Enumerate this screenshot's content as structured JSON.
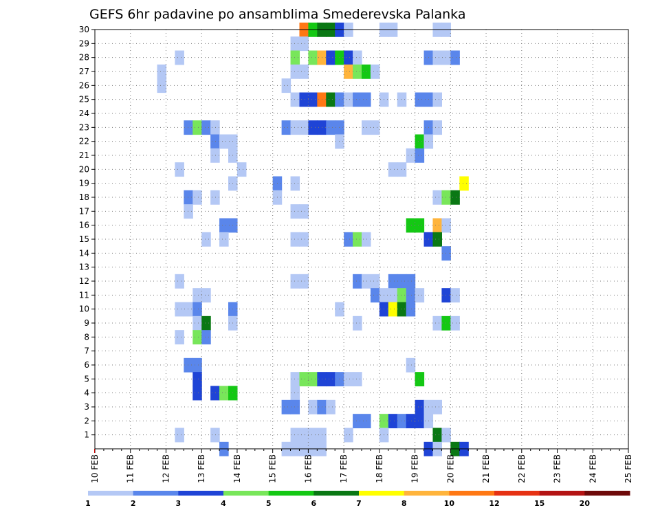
{
  "chart_data": {
    "type": "heatmap",
    "title": "GEFS 6hr padavine po ansamblima Smederevska Palanka",
    "xlabel": "",
    "ylabel": "",
    "x_tick_labels": [
      "10 FEB",
      "11 FEB",
      "12 FEB",
      "13 FEB",
      "14 FEB",
      "15 FEB",
      "16 FEB",
      "17 FEB",
      "18 FEB",
      "19 FEB",
      "20 FEB",
      "21 FEB",
      "22 FEB",
      "23 FEB",
      "24 FEB",
      "25 FEB"
    ],
    "x_range_days": [
      0,
      15
    ],
    "x_step_hours": 6,
    "y_tick_labels": [
      "1",
      "2",
      "3",
      "4",
      "5",
      "6",
      "7",
      "8",
      "9",
      "10",
      "11",
      "12",
      "13",
      "14",
      "15",
      "16",
      "17",
      "18",
      "19",
      "20",
      "21",
      "22",
      "23",
      "24",
      "25",
      "26",
      "27",
      "28",
      "29",
      "30"
    ],
    "y_range": [
      0,
      30
    ],
    "grid": true,
    "colorbar": {
      "position": "bottom",
      "tick_labels": [
        "1",
        "2",
        "3",
        "4",
        "5",
        "6",
        "7",
        "8",
        "10",
        "12",
        "15",
        "20"
      ],
      "colors": [
        "#b4c8f5",
        "#5a86eb",
        "#1f44d6",
        "#78e65a",
        "#14c814",
        "#0a7814",
        "#ffff00",
        "#ffb43c",
        "#ff7814",
        "#e63214",
        "#b41414",
        "#6e0a0a"
      ]
    },
    "note": "cells: [x_step_index (6h steps from 10 FEB 00Z), ensemble member, color class 0-11]",
    "cells": [
      [
        23,
        30,
        8
      ],
      [
        24,
        30,
        4
      ],
      [
        25,
        30,
        5
      ],
      [
        26,
        30,
        5
      ],
      [
        27,
        30,
        2
      ],
      [
        28,
        30,
        0
      ],
      [
        32,
        30,
        0
      ],
      [
        33,
        30,
        0
      ],
      [
        38,
        30,
        0
      ],
      [
        39,
        30,
        0
      ],
      [
        22,
        29,
        0
      ],
      [
        23,
        29,
        0
      ],
      [
        9,
        28,
        0
      ],
      [
        22,
        28,
        3
      ],
      [
        24,
        28,
        3
      ],
      [
        25,
        28,
        7
      ],
      [
        26,
        28,
        2
      ],
      [
        27,
        28,
        4
      ],
      [
        28,
        28,
        2
      ],
      [
        29,
        28,
        0
      ],
      [
        37,
        28,
        1
      ],
      [
        38,
        28,
        0
      ],
      [
        39,
        28,
        0
      ],
      [
        40,
        28,
        1
      ],
      [
        7,
        27,
        0
      ],
      [
        22,
        27,
        0
      ],
      [
        23,
        27,
        0
      ],
      [
        28,
        27,
        7
      ],
      [
        29,
        27,
        3
      ],
      [
        30,
        27,
        4
      ],
      [
        31,
        27,
        0
      ],
      [
        7,
        26,
        0
      ],
      [
        21,
        26,
        0
      ],
      [
        22,
        25,
        0
      ],
      [
        23,
        25,
        2
      ],
      [
        24,
        25,
        2
      ],
      [
        25,
        25,
        8
      ],
      [
        26,
        25,
        5
      ],
      [
        27,
        25,
        1
      ],
      [
        28,
        25,
        0
      ],
      [
        29,
        25,
        1
      ],
      [
        30,
        25,
        1
      ],
      [
        32,
        25,
        0
      ],
      [
        34,
        25,
        0
      ],
      [
        36,
        25,
        1
      ],
      [
        37,
        25,
        1
      ],
      [
        38,
        25,
        0
      ],
      [
        10,
        23,
        1
      ],
      [
        11,
        23,
        3
      ],
      [
        12,
        23,
        1
      ],
      [
        13,
        23,
        0
      ],
      [
        21,
        23,
        1
      ],
      [
        22,
        23,
        0
      ],
      [
        23,
        23,
        0
      ],
      [
        24,
        23,
        2
      ],
      [
        25,
        23,
        2
      ],
      [
        26,
        23,
        1
      ],
      [
        27,
        23,
        1
      ],
      [
        30,
        23,
        0
      ],
      [
        31,
        23,
        0
      ],
      [
        37,
        23,
        1
      ],
      [
        38,
        23,
        0
      ],
      [
        13,
        22,
        1
      ],
      [
        14,
        22,
        0
      ],
      [
        15,
        22,
        0
      ],
      [
        27,
        22,
        0
      ],
      [
        36,
        22,
        4
      ],
      [
        37,
        22,
        0
      ],
      [
        13,
        21,
        0
      ],
      [
        15,
        21,
        0
      ],
      [
        35,
        21,
        0
      ],
      [
        36,
        21,
        1
      ],
      [
        9,
        20,
        0
      ],
      [
        16,
        20,
        0
      ],
      [
        33,
        20,
        0
      ],
      [
        34,
        20,
        0
      ],
      [
        15,
        19,
        0
      ],
      [
        20,
        19,
        1
      ],
      [
        22,
        19,
        0
      ],
      [
        41,
        19,
        6
      ],
      [
        10,
        18,
        1
      ],
      [
        11,
        18,
        0
      ],
      [
        13,
        18,
        0
      ],
      [
        20,
        18,
        0
      ],
      [
        38,
        18,
        0
      ],
      [
        39,
        18,
        3
      ],
      [
        40,
        18,
        5
      ],
      [
        10,
        17,
        0
      ],
      [
        22,
        17,
        0
      ],
      [
        23,
        17,
        0
      ],
      [
        14,
        16,
        1
      ],
      [
        15,
        16,
        1
      ],
      [
        35,
        16,
        4
      ],
      [
        36,
        16,
        4
      ],
      [
        38,
        16,
        7
      ],
      [
        39,
        16,
        0
      ],
      [
        12,
        15,
        0
      ],
      [
        14,
        15,
        0
      ],
      [
        22,
        15,
        0
      ],
      [
        23,
        15,
        0
      ],
      [
        28,
        15,
        1
      ],
      [
        29,
        15,
        3
      ],
      [
        30,
        15,
        0
      ],
      [
        37,
        15,
        2
      ],
      [
        38,
        15,
        5
      ],
      [
        39,
        14,
        1
      ],
      [
        9,
        12,
        0
      ],
      [
        22,
        12,
        0
      ],
      [
        23,
        12,
        0
      ],
      [
        29,
        12,
        1
      ],
      [
        30,
        12,
        0
      ],
      [
        31,
        12,
        0
      ],
      [
        33,
        12,
        1
      ],
      [
        34,
        12,
        1
      ],
      [
        35,
        12,
        1
      ],
      [
        11,
        11,
        0
      ],
      [
        12,
        11,
        0
      ],
      [
        31,
        11,
        1
      ],
      [
        32,
        11,
        0
      ],
      [
        33,
        11,
        0
      ],
      [
        34,
        11,
        3
      ],
      [
        35,
        11,
        1
      ],
      [
        36,
        11,
        0
      ],
      [
        39,
        11,
        2
      ],
      [
        40,
        11,
        0
      ],
      [
        9,
        10,
        0
      ],
      [
        10,
        10,
        0
      ],
      [
        11,
        10,
        1
      ],
      [
        15,
        10,
        1
      ],
      [
        27,
        10,
        0
      ],
      [
        32,
        10,
        2
      ],
      [
        33,
        10,
        6
      ],
      [
        34,
        10,
        5
      ],
      [
        35,
        10,
        1
      ],
      [
        11,
        9,
        0
      ],
      [
        12,
        9,
        5
      ],
      [
        15,
        9,
        0
      ],
      [
        29,
        9,
        0
      ],
      [
        38,
        9,
        0
      ],
      [
        39,
        9,
        4
      ],
      [
        40,
        9,
        0
      ],
      [
        9,
        8,
        0
      ],
      [
        11,
        8,
        3
      ],
      [
        12,
        8,
        1
      ],
      [
        10,
        6,
        1
      ],
      [
        11,
        6,
        1
      ],
      [
        35,
        6,
        0
      ],
      [
        11,
        5,
        2
      ],
      [
        22,
        5,
        0
      ],
      [
        23,
        5,
        3
      ],
      [
        24,
        5,
        3
      ],
      [
        25,
        5,
        2
      ],
      [
        26,
        5,
        2
      ],
      [
        27,
        5,
        1
      ],
      [
        28,
        5,
        0
      ],
      [
        29,
        5,
        0
      ],
      [
        36,
        5,
        4
      ],
      [
        11,
        4,
        2
      ],
      [
        13,
        4,
        2
      ],
      [
        14,
        4,
        3
      ],
      [
        15,
        4,
        4
      ],
      [
        22,
        4,
        0
      ],
      [
        21,
        3,
        1
      ],
      [
        22,
        3,
        1
      ],
      [
        24,
        3,
        0
      ],
      [
        25,
        3,
        1
      ],
      [
        26,
        3,
        0
      ],
      [
        36,
        3,
        2
      ],
      [
        37,
        3,
        0
      ],
      [
        38,
        3,
        0
      ],
      [
        29,
        2,
        1
      ],
      [
        30,
        2,
        1
      ],
      [
        32,
        2,
        3
      ],
      [
        33,
        2,
        2
      ],
      [
        34,
        2,
        1
      ],
      [
        35,
        2,
        2
      ],
      [
        36,
        2,
        2
      ],
      [
        37,
        2,
        0
      ],
      [
        9,
        1,
        0
      ],
      [
        13,
        1,
        0
      ],
      [
        22,
        1,
        0
      ],
      [
        23,
        1,
        0
      ],
      [
        24,
        1,
        0
      ],
      [
        25,
        1,
        0
      ],
      [
        28,
        1,
        0
      ],
      [
        32,
        1,
        0
      ],
      [
        38,
        1,
        5
      ],
      [
        39,
        1,
        0
      ],
      [
        14,
        0,
        1
      ],
      [
        21,
        0,
        0
      ],
      [
        22,
        0,
        0
      ],
      [
        23,
        0,
        0
      ],
      [
        24,
        0,
        0
      ],
      [
        25,
        0,
        0
      ],
      [
        37,
        0,
        2
      ],
      [
        38,
        0,
        0
      ],
      [
        40,
        0,
        5
      ],
      [
        41,
        0,
        2
      ]
    ]
  }
}
